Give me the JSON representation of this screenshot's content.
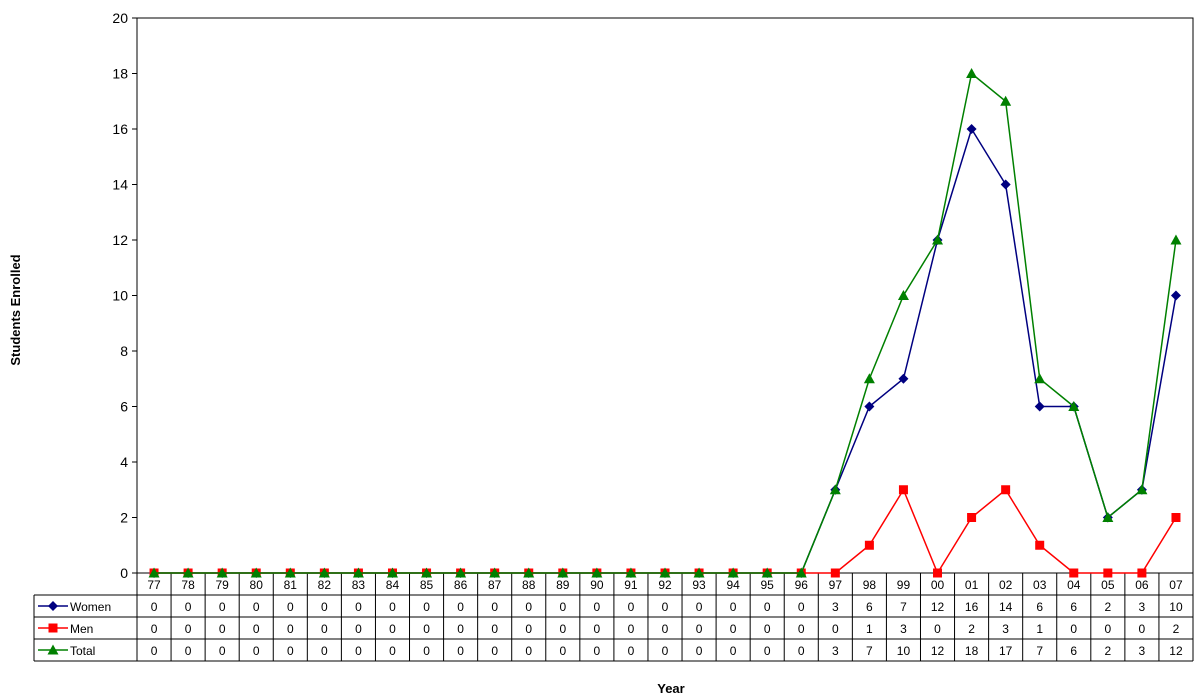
{
  "chart_data": {
    "type": "line",
    "title": "",
    "xlabel": "Year",
    "ylabel": "Students Enrolled",
    "ylim": [
      0,
      20
    ],
    "yticks": [
      "0",
      "2",
      "4",
      "6",
      "8",
      "10",
      "12",
      "14",
      "16",
      "18",
      "20"
    ],
    "grid": false,
    "legend": "data table",
    "categories": [
      "77",
      "78",
      "79",
      "80",
      "81",
      "82",
      "83",
      "84",
      "85",
      "86",
      "87",
      "88",
      "89",
      "90",
      "91",
      "92",
      "93",
      "94",
      "95",
      "96",
      "97",
      "98",
      "99",
      "00",
      "01",
      "02",
      "03",
      "04",
      "05",
      "06",
      "07"
    ],
    "series": [
      {
        "name": "Women",
        "color": "#000080",
        "marker": "diamond",
        "values": [
          0,
          0,
          0,
          0,
          0,
          0,
          0,
          0,
          0,
          0,
          0,
          0,
          0,
          0,
          0,
          0,
          0,
          0,
          0,
          0,
          3,
          6,
          7,
          12,
          16,
          14,
          6,
          6,
          2,
          3,
          10
        ]
      },
      {
        "name": "Men",
        "color": "#ff0000",
        "marker": "square",
        "values": [
          0,
          0,
          0,
          0,
          0,
          0,
          0,
          0,
          0,
          0,
          0,
          0,
          0,
          0,
          0,
          0,
          0,
          0,
          0,
          0,
          0,
          1,
          3,
          0,
          2,
          3,
          1,
          0,
          0,
          0,
          2
        ]
      },
      {
        "name": "Total",
        "color": "#008000",
        "marker": "triangle",
        "values": [
          0,
          0,
          0,
          0,
          0,
          0,
          0,
          0,
          0,
          0,
          0,
          0,
          0,
          0,
          0,
          0,
          0,
          0,
          0,
          0,
          3,
          7,
          10,
          12,
          18,
          17,
          7,
          6,
          2,
          3,
          12
        ]
      }
    ]
  }
}
